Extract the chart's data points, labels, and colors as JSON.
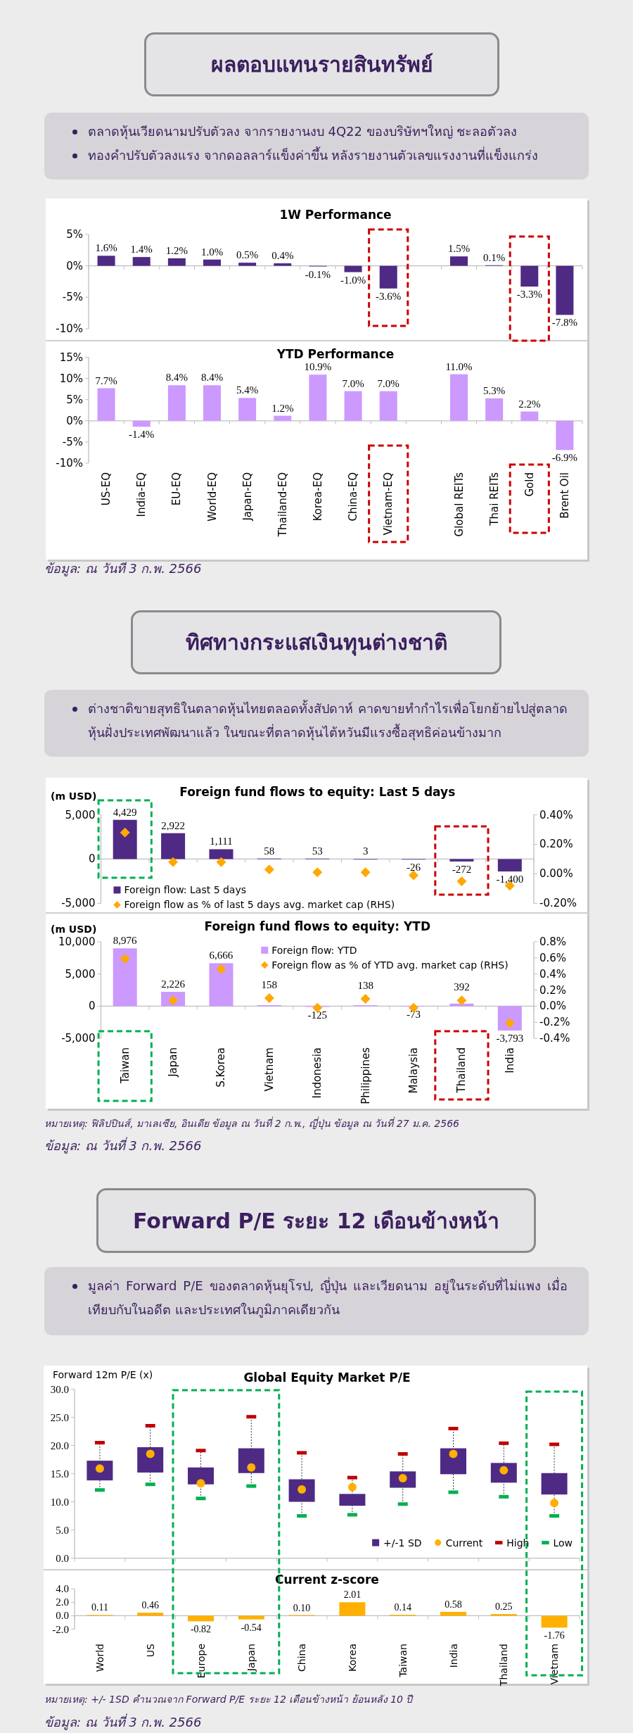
{
  "chart_data": [
    {
      "type": "bar",
      "title": "1W Performance",
      "annotations": [
        "ผลตอบแทนรายสินทรัพย์",
        "ตลาดหุ้นเวียดนามปรับตัวลง จากรายงานงบ 4Q22 ของบริษัทฯใหญ่ ชะลอตัวลง",
        "ทองคำปรับตัวลงแรง จากดอลลาร์แข็งค่าขึ้น หลังรายงานตัวเลขแรงงานที่แข็งแกร่ง"
      ],
      "categories": [
        "US-EQ",
        "India-EQ",
        "EU-EQ",
        "World-EQ",
        "Japan-EQ",
        "Thailand-EQ",
        "Korea-EQ",
        "China-EQ",
        "Vietnam-EQ",
        null,
        "Global REITs",
        "Thai REITs",
        "Gold",
        "Brent Oil"
      ],
      "values": [
        1.6,
        1.4,
        1.2,
        1.0,
        0.5,
        0.4,
        -0.1,
        -1.0,
        -3.6,
        null,
        1.5,
        0.1,
        -3.3,
        -7.8
      ],
      "value_labels": [
        "1.6%",
        "1.4%",
        "1.2%",
        "1.0%",
        "0.5%",
        "0.4%",
        "-0.1%",
        "-1.0%",
        "-3.6%",
        null,
        "1.5%",
        "0.1%",
        "-3.3%",
        "-7.8%"
      ],
      "color": "#4e2a84",
      "ylim": [
        -10,
        5
      ],
      "yticks": [
        {
          "value": -10,
          "label": "-10%"
        },
        {
          "value": -5,
          "label": "-5%"
        },
        {
          "value": 0,
          "label": "0%"
        },
        {
          "value": 5,
          "label": "5%"
        }
      ],
      "tick_labels": "y"
    },
    {
      "type": "bar",
      "title": "YTD Performance",
      "annotations": [
        "ข้อมูล: ณ วันที่ 3 ก.พ. 2566"
      ],
      "categories": [
        "US-EQ",
        "India-EQ",
        "EU-EQ",
        "World-EQ",
        "Japan-EQ",
        "Thailand-EQ",
        "Korea-EQ",
        "China-EQ",
        "Vietnam-EQ",
        null,
        "Global REITs",
        "Thai REITs",
        "Gold",
        "Brent Oil"
      ],
      "values": [
        7.7,
        -1.4,
        8.4,
        8.4,
        5.4,
        1.2,
        10.9,
        7.0,
        7.0,
        null,
        11.0,
        5.3,
        2.2,
        -6.9
      ],
      "value_labels": [
        "7.7%",
        "-1.4%",
        "8.4%",
        "8.4%",
        "5.4%",
        "1.2%",
        "10.9%",
        "7.0%",
        "7.0%",
        null,
        "11.0%",
        "5.3%",
        "2.2%",
        "-6.9%"
      ],
      "color": "#cc99ff",
      "ylim": [
        -10,
        15
      ],
      "yticks": [
        {
          "value": -10,
          "label": "-10%"
        },
        {
          "value": -5,
          "label": "-5%"
        },
        {
          "value": 0,
          "label": "0%"
        },
        {
          "value": 5,
          "label": "5%"
        },
        {
          "value": 10,
          "label": "10%"
        },
        {
          "value": 15,
          "label": "15%"
        }
      ]
    },
    {
      "type": "bar",
      "title": "Foreign fund flows to equity: Last 5 days",
      "ylabel": "(m USD)",
      "annotations": [
        "ทิศทางกระแสเงินทุนต่างชาติ",
        "ต่างชาติขายสุทธิในตลาดหุ้นไทยตลอดทั้งสัปดาห์ คาดขายทำกำไรเพื่อโยกย้ายไปสู่ตลาดหุ้นฝั่งประเทศพัฒนาแล้ว ในขณะที่ตลาดหุ้นไต้หวันมีแรงซื้อสุทธิค่อนข้างมาก"
      ],
      "categories": [
        "Taiwan",
        "Japan",
        "S.Korea",
        "Vietnam",
        "Indonesia",
        "Philippines",
        "Malaysia",
        "Thailand",
        "India"
      ],
      "series": [
        {
          "name": "Foreign flow: Last 5 days",
          "color": "#4e2a84",
          "values": [
            4429,
            2922,
            1111,
            58,
            53,
            3,
            -26,
            -272,
            -1400
          ],
          "value_labels": [
            "4,429",
            "2,922",
            "1,111",
            "58",
            "53",
            "3",
            "-26",
            "-272",
            "-1,400"
          ]
        },
        {
          "name": "Foreign flow as % of last 5 days avg. market cap (RHS)",
          "type": "scatter",
          "axis": "y2",
          "marker": "diamond",
          "color": "#ffa800",
          "x": [
            "Taiwan",
            "Japan",
            "S.Korea",
            "Vietnam",
            "Indonesia",
            "Philippines",
            "Malaysia",
            "Thailand",
            "India"
          ],
          "values": [
            0.28,
            0.08,
            0.08,
            0.03,
            0.01,
            0.01,
            -0.01,
            -0.05,
            -0.08
          ]
        }
      ],
      "ylim": [
        -5000,
        5000
      ],
      "yticks": [
        {
          "value": -5000,
          "label": "-5,000"
        },
        0,
        {
          "value": 5000,
          "label": "5,000"
        }
      ],
      "y2lim": [
        -0.2,
        0.4
      ],
      "y2ticks": [
        {
          "value": -0.2,
          "label": "-0.20%"
        },
        {
          "value": 0,
          "label": "0.00%"
        },
        {
          "value": 0.2,
          "label": "0.20%"
        },
        {
          "value": 0.4,
          "label": "0.40%"
        }
      ],
      "legend": "bottom left",
      "tick_labels": "y"
    },
    {
      "type": "bar",
      "title": "Foreign fund flows to equity: YTD",
      "ylabel": "(m USD)",
      "annotations": [
        "หมายเหตุ: ฟิลิปปินส์, มาเลเซีย, อินเดีย ข้อมูล ณ วันที่ 2 ก.พ., ญี่ปุ่น ข้อมูล ณ วันที่ 27 ม.ค. 2566",
        "ข้อมูล: ณ วันที่ 3 ก.พ. 2566"
      ],
      "categories": [
        "Taiwan",
        "Japan",
        "S.Korea",
        "Vietnam",
        "Indonesia",
        "Philippines",
        "Malaysia",
        "Thailand",
        "India"
      ],
      "series": [
        {
          "name": "Foreign flow: YTD",
          "color": "#cc99ff",
          "values": [
            8976,
            2226,
            6666,
            158,
            -125,
            138,
            -73,
            392,
            -3793
          ],
          "value_labels": [
            "8,976",
            "2,226",
            "6,666",
            "158",
            "-125",
            "138",
            "-73",
            "392",
            "-3,793"
          ]
        },
        {
          "name": "Foreign flow as % of YTD avg. market cap (RHS)",
          "type": "scatter",
          "axis": "y2",
          "marker": "diamond",
          "color": "#ffa800",
          "x": [
            "Taiwan",
            "Japan",
            "S.Korea",
            "Vietnam",
            "Indonesia",
            "Philippines",
            "Malaysia",
            "Thailand",
            "India"
          ],
          "values": [
            0.59,
            0.07,
            0.46,
            0.1,
            -0.02,
            0.09,
            -0.02,
            0.07,
            -0.21
          ]
        }
      ],
      "ylim": [
        -5000,
        10000
      ],
      "yticks": [
        {
          "value": -5000,
          "label": "-5,000"
        },
        0,
        {
          "value": 5000,
          "label": "5,000"
        },
        {
          "value": 10000,
          "label": "10,000"
        }
      ],
      "y2lim": [
        -0.4,
        0.8
      ],
      "y2ticks": [
        {
          "value": -0.4,
          "label": "-0.4%"
        },
        {
          "value": -0.2,
          "label": "-0.2%"
        },
        {
          "value": 0,
          "label": "0.0%"
        },
        {
          "value": 0.2,
          "label": "0.2%"
        },
        {
          "value": 0.4,
          "label": "0.4%"
        },
        {
          "value": 0.6,
          "label": "0.6%"
        },
        {
          "value": 0.8,
          "label": "0.8%"
        }
      ],
      "legend": "top"
    },
    {
      "type": "box",
      "title": "Global Equity Market P/E",
      "ylabel": "Forward 12m P/E (x)",
      "annotations": [
        "Forward P/E ระยะ 12 เดือนข้างหน้า",
        "มูลค่า Forward P/E ของตลาดหุ้นยุโรป, ญี่ปุ่น และเวียดนาม อยู่ในระดับที่ไม่แพง เมื่อเทียบกับในอดีต และประเทศในภูมิภาคเดียวกัน"
      ],
      "categories": [
        "World",
        "US",
        "Europe",
        "Japan",
        "China",
        "Korea",
        "Taiwan",
        "India",
        "Thailand",
        "Vietnam"
      ],
      "series": [
        {
          "name": "+/-1 SD",
          "type": "box",
          "color": "#4e2a84",
          "boxes": [
            {
              "low": 12.1,
              "q1": 13.8,
              "median": null,
              "q3": 17.3,
              "high": 20.5
            },
            {
              "low": 13.1,
              "q1": 15.2,
              "median": null,
              "q3": 19.7,
              "high": 23.5
            },
            {
              "low": 10.6,
              "q1": 13.1,
              "median": null,
              "q3": 16.1,
              "high": 19.1
            },
            {
              "low": 12.8,
              "q1": 15.1,
              "median": null,
              "q3": 19.5,
              "high": 25.1
            },
            {
              "low": 7.5,
              "q1": 10.0,
              "median": null,
              "q3": 14.0,
              "high": 18.7
            },
            {
              "low": 7.7,
              "q1": 9.3,
              "median": null,
              "q3": 11.4,
              "high": 14.3
            },
            {
              "low": 9.6,
              "q1": 12.5,
              "median": null,
              "q3": 15.4,
              "high": 18.5
            },
            {
              "low": 11.7,
              "q1": 14.9,
              "median": null,
              "q3": 19.5,
              "high": 23.0
            },
            {
              "low": 10.9,
              "q1": 13.4,
              "median": null,
              "q3": 16.9,
              "high": 20.4
            },
            {
              "low": 7.5,
              "q1": 11.3,
              "median": null,
              "q3": 15.1,
              "high": 20.2
            }
          ]
        },
        {
          "name": "Current",
          "type": "scatter",
          "marker": "circle",
          "color": "#ffb000",
          "x": [
            "World",
            "US",
            "Europe",
            "Japan",
            "China",
            "Korea",
            "Taiwan",
            "India",
            "Thailand",
            "Vietnam"
          ],
          "values": [
            15.9,
            18.5,
            13.3,
            16.1,
            12.2,
            12.6,
            14.2,
            18.5,
            15.6,
            9.8
          ]
        },
        {
          "name": "High",
          "type": "scatter",
          "color": "#c00000",
          "x": [
            "World",
            "US",
            "Europe",
            "Japan",
            "China",
            "Korea",
            "Taiwan",
            "India",
            "Thailand",
            "Vietnam"
          ],
          "values": [
            20.5,
            23.5,
            19.1,
            25.1,
            18.7,
            14.3,
            18.5,
            23.0,
            20.4,
            20.2
          ]
        },
        {
          "name": "Low",
          "type": "scatter",
          "color": "#00b050",
          "x": [
            "World",
            "US",
            "Europe",
            "Japan",
            "China",
            "Korea",
            "Taiwan",
            "India",
            "Thailand",
            "Vietnam"
          ],
          "values": [
            12.1,
            13.1,
            10.6,
            12.8,
            7.5,
            7.7,
            9.6,
            11.7,
            10.9,
            7.5
          ]
        }
      ],
      "ylim": [
        0,
        30
      ],
      "yticks": [
        {
          "value": 0,
          "label": "0.0"
        },
        {
          "value": 5,
          "label": "5.0"
        },
        {
          "value": 10,
          "label": "10.0"
        },
        {
          "value": 15,
          "label": "15.0"
        },
        {
          "value": 20,
          "label": "20.0"
        },
        {
          "value": 25,
          "label": "25.0"
        },
        {
          "value": 30,
          "label": "30.0"
        }
      ],
      "legend": "bottom right",
      "tick_labels": "y"
    },
    {
      "type": "bar",
      "title": "Current z-score",
      "annotations": [
        "หมายเหตุ: +/- 1SD คำนวณจาก Forward P/E ระยะ 12 เดือนข้างหน้า ย้อนหลัง 10 ปี",
        "ข้อมูล: ณ วันที่ 3 ก.พ. 2566"
      ],
      "categories": [
        "World",
        "US",
        "Europe",
        "Japan",
        "China",
        "Korea",
        "Taiwan",
        "India",
        "Thailand",
        "Vietnam"
      ],
      "values": [
        0.11,
        0.46,
        -0.82,
        -0.54,
        0.1,
        2.01,
        0.14,
        0.58,
        0.25,
        -1.76
      ],
      "value_labels": [
        "0.11",
        "0.46",
        "-0.82",
        "-0.54",
        "0.10",
        "2.01",
        "0.14",
        "0.58",
        "0.25",
        "-1.76"
      ],
      "color": "#ffb000",
      "ylim": [
        -2,
        4
      ],
      "yticks": [
        {
          "value": -2,
          "label": "-2.0"
        },
        {
          "value": 0,
          "label": "0.0"
        },
        {
          "value": 2,
          "label": "2.0"
        },
        {
          "value": 4,
          "label": "4.0"
        }
      ]
    }
  ]
}
